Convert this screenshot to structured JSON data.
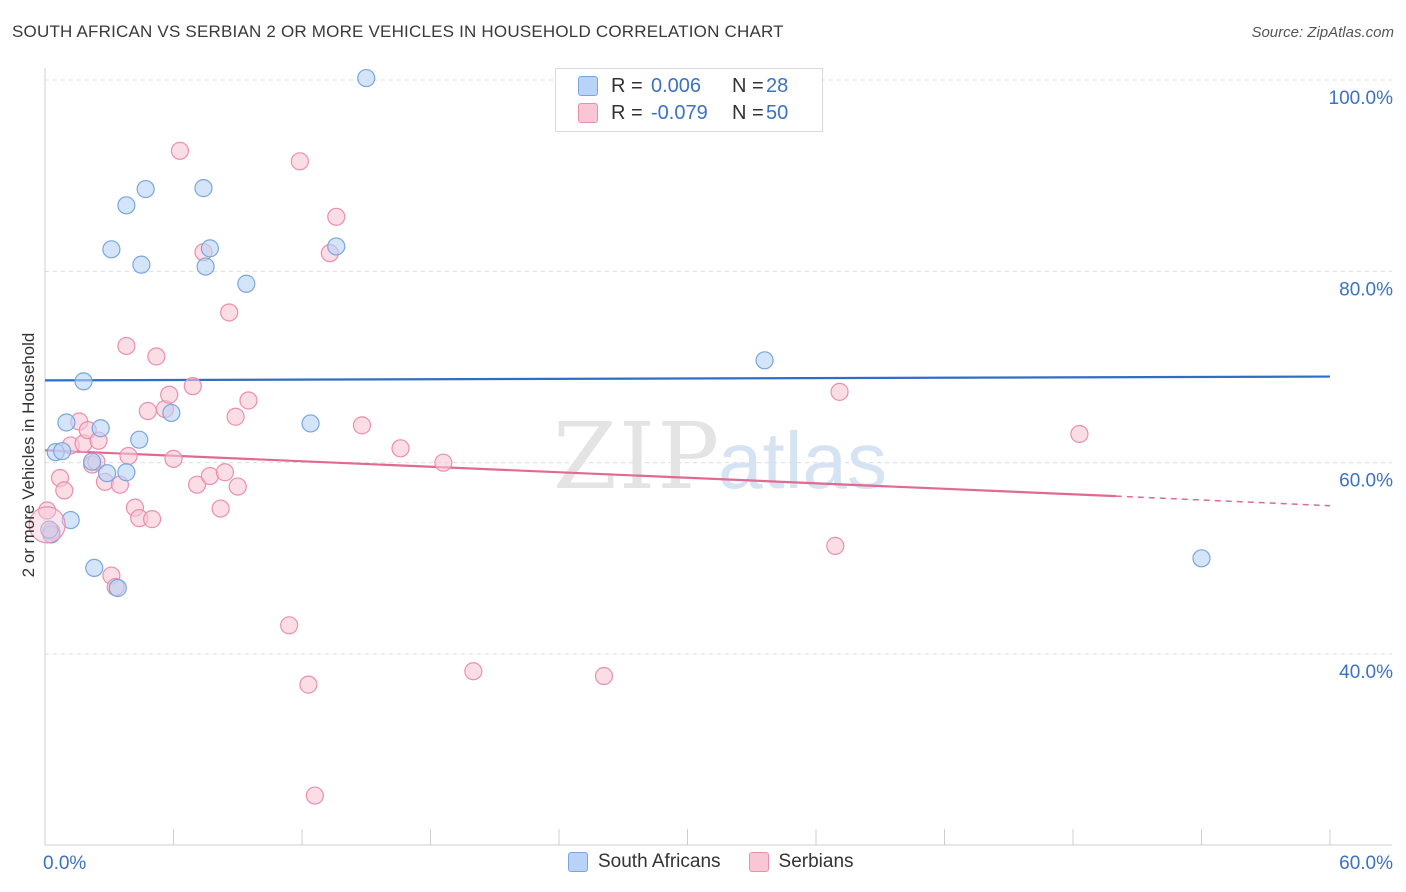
{
  "title": "SOUTH AFRICAN VS SERBIAN 2 OR MORE VEHICLES IN HOUSEHOLD CORRELATION CHART",
  "source": "Source: ZipAtlas.com",
  "watermark": {
    "zip": "ZIP",
    "atlas": "atlas"
  },
  "colors": {
    "blue_fill": "#b8d3f5",
    "blue_stroke": "#7aa6e0",
    "blue_line": "#2f6ec6",
    "pink_fill": "#f9c6d6",
    "pink_stroke": "#eb8fae",
    "pink_line": "#e06a93",
    "axis_text": "#3b72c4",
    "grid": "#dcdcdc"
  },
  "legend": {
    "rows": [
      {
        "r_label": "R =",
        "r_value": "0.006",
        "n_label": "N =",
        "n_value": "28"
      },
      {
        "r_label": "R =",
        "r_value": "-0.079",
        "n_label": "N =",
        "n_value": "50"
      }
    ]
  },
  "bottom_legend": [
    "South Africans",
    "Serbians"
  ],
  "chart_data": {
    "type": "scatter",
    "title": "SOUTH AFRICAN VS SERBIAN 2 OR MORE VEHICLES IN HOUSEHOLD CORRELATION CHART",
    "xlabel": "",
    "ylabel": "2 or more Vehicles in Household",
    "xlim": [
      0,
      60
    ],
    "ylim": [
      20,
      102
    ],
    "x_tick_labels": [
      "0.0%",
      "60.0%"
    ],
    "y_ticks": [
      40,
      60,
      80,
      100
    ],
    "y_tick_labels": [
      "40.0%",
      "60.0%",
      "80.0%",
      "100.0%"
    ],
    "grid": true,
    "series": [
      {
        "name": "South Africans",
        "r": 0.006,
        "n": 28,
        "trend": {
          "x": [
            0,
            60
          ],
          "y": [
            68.6,
            69.0
          ]
        },
        "points": [
          {
            "x": 0.3,
            "y": 52.5
          },
          {
            "x": 0.5,
            "y": 61.1
          },
          {
            "x": 0.8,
            "y": 61.2
          },
          {
            "x": 1.0,
            "y": 64.2
          },
          {
            "x": 1.2,
            "y": 54.0
          },
          {
            "x": 1.8,
            "y": 68.5
          },
          {
            "x": 2.2,
            "y": 60.1
          },
          {
            "x": 2.3,
            "y": 49.0
          },
          {
            "x": 2.6,
            "y": 63.6
          },
          {
            "x": 2.9,
            "y": 58.9
          },
          {
            "x": 3.1,
            "y": 82.3
          },
          {
            "x": 3.4,
            "y": 46.9
          },
          {
            "x": 3.8,
            "y": 86.9
          },
          {
            "x": 3.8,
            "y": 59.0
          },
          {
            "x": 4.4,
            "y": 62.4
          },
          {
            "x": 4.5,
            "y": 80.7
          },
          {
            "x": 4.7,
            "y": 88.6
          },
          {
            "x": 5.9,
            "y": 65.2
          },
          {
            "x": 7.4,
            "y": 88.7
          },
          {
            "x": 7.5,
            "y": 80.5
          },
          {
            "x": 7.7,
            "y": 82.4
          },
          {
            "x": 9.4,
            "y": 78.7
          },
          {
            "x": 12.4,
            "y": 64.1
          },
          {
            "x": 13.6,
            "y": 82.6
          },
          {
            "x": 15.0,
            "y": 100.2
          },
          {
            "x": 33.6,
            "y": 70.7
          },
          {
            "x": 54.0,
            "y": 50.0
          },
          {
            "x": 0.2,
            "y": 53.0
          }
        ]
      },
      {
        "name": "Serbians",
        "r": -0.079,
        "n": 50,
        "trend": {
          "x": [
            0,
            50
          ],
          "y": [
            61.3,
            56.5
          ]
        },
        "trend_dashed": {
          "x": [
            50,
            60
          ],
          "y": [
            56.5,
            55.5
          ]
        },
        "points": [
          {
            "x": 0.1,
            "y": 55.0
          },
          {
            "x": 0.7,
            "y": 58.4
          },
          {
            "x": 0.9,
            "y": 57.1
          },
          {
            "x": 1.2,
            "y": 61.8
          },
          {
            "x": 1.6,
            "y": 64.3
          },
          {
            "x": 1.8,
            "y": 62.0
          },
          {
            "x": 2.0,
            "y": 63.4
          },
          {
            "x": 2.2,
            "y": 59.8
          },
          {
            "x": 2.4,
            "y": 60.1
          },
          {
            "x": 2.5,
            "y": 62.3
          },
          {
            "x": 2.8,
            "y": 58.0
          },
          {
            "x": 3.1,
            "y": 48.2
          },
          {
            "x": 3.3,
            "y": 47.0
          },
          {
            "x": 3.5,
            "y": 57.7
          },
          {
            "x": 3.8,
            "y": 72.2
          },
          {
            "x": 3.9,
            "y": 60.7
          },
          {
            "x": 4.2,
            "y": 55.3
          },
          {
            "x": 4.4,
            "y": 54.2
          },
          {
            "x": 4.8,
            "y": 65.4
          },
          {
            "x": 5.0,
            "y": 54.1
          },
          {
            "x": 5.2,
            "y": 71.1
          },
          {
            "x": 5.6,
            "y": 65.6
          },
          {
            "x": 5.8,
            "y": 67.1
          },
          {
            "x": 6.0,
            "y": 60.4
          },
          {
            "x": 6.3,
            "y": 92.6
          },
          {
            "x": 6.9,
            "y": 68.0
          },
          {
            "x": 7.1,
            "y": 57.7
          },
          {
            "x": 7.4,
            "y": 82.0
          },
          {
            "x": 7.7,
            "y": 58.6
          },
          {
            "x": 8.2,
            "y": 55.2
          },
          {
            "x": 8.4,
            "y": 59.0
          },
          {
            "x": 8.6,
            "y": 75.7
          },
          {
            "x": 8.9,
            "y": 64.8
          },
          {
            "x": 9.0,
            "y": 57.5
          },
          {
            "x": 9.5,
            "y": 66.5
          },
          {
            "x": 11.4,
            "y": 43.0
          },
          {
            "x": 11.9,
            "y": 91.5
          },
          {
            "x": 12.3,
            "y": 36.8
          },
          {
            "x": 12.6,
            "y": 25.2
          },
          {
            "x": 13.3,
            "y": 81.9
          },
          {
            "x": 13.6,
            "y": 85.7
          },
          {
            "x": 14.8,
            "y": 63.9
          },
          {
            "x": 16.6,
            "y": 61.5
          },
          {
            "x": 18.6,
            "y": 60.0
          },
          {
            "x": 20.0,
            "y": 38.2
          },
          {
            "x": 26.1,
            "y": 37.7
          },
          {
            "x": 36.9,
            "y": 51.3
          },
          {
            "x": 37.1,
            "y": 67.4
          },
          {
            "x": 48.3,
            "y": 63.0
          },
          {
            "x": 0.3,
            "y": 52.8
          }
        ]
      }
    ]
  }
}
